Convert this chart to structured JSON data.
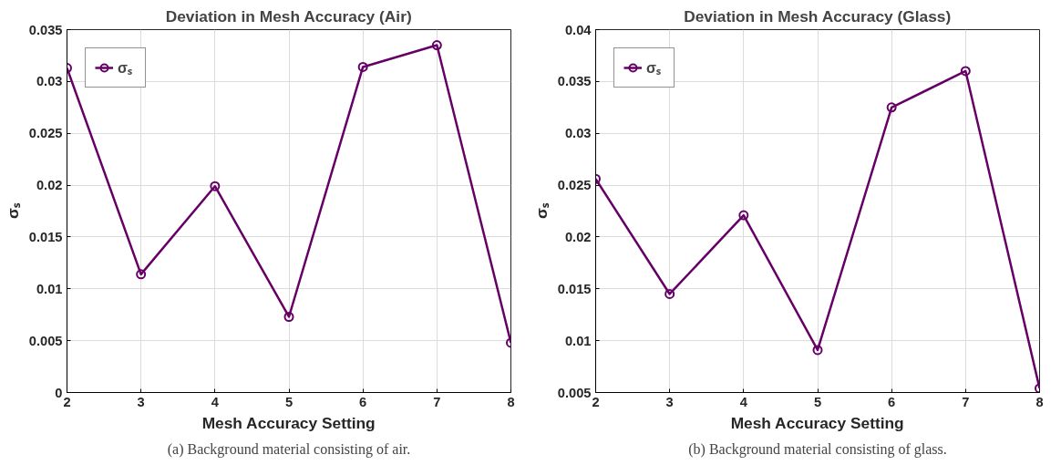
{
  "chart_data": [
    {
      "type": "line",
      "title": "Deviation in Mesh Accuracy (Air)",
      "xlabel": "Mesh Accuracy Setting",
      "ylabel": "σₛ",
      "x": [
        2,
        3,
        4,
        5,
        6,
        7,
        8
      ],
      "series": [
        {
          "name": "σₛ",
          "color": "#660066",
          "values": [
            0.0313,
            0.0114,
            0.0199,
            0.0073,
            0.0314,
            0.0335,
            0.0048
          ]
        }
      ],
      "xlim": [
        2,
        8
      ],
      "xticks": [
        2,
        3,
        4,
        5,
        6,
        7,
        8
      ],
      "ylim": [
        0,
        0.035
      ],
      "yticks": [
        0,
        0.005,
        0.01,
        0.015,
        0.02,
        0.025,
        0.03,
        0.035
      ],
      "grid": true,
      "legend": "top left",
      "marker": "circle",
      "line_style": "solid",
      "annotations": [
        "(a) Background material consisting of air."
      ]
    },
    {
      "type": "line",
      "title": "Deviation in Mesh Accuracy (Glass)",
      "xlabel": "Mesh Accuracy Setting",
      "ylabel": "σₛ",
      "x": [
        2,
        3,
        4,
        5,
        6,
        7,
        8
      ],
      "series": [
        {
          "name": "σₛ",
          "color": "#660066",
          "values": [
            0.0256,
            0.0145,
            0.0221,
            0.0091,
            0.0325,
            0.036,
            0.0054
          ]
        }
      ],
      "xlim": [
        2,
        8
      ],
      "xticks": [
        2,
        3,
        4,
        5,
        6,
        7,
        8
      ],
      "ylim": [
        0.005,
        0.04
      ],
      "yticks": [
        0.005,
        0.01,
        0.015,
        0.02,
        0.025,
        0.03,
        0.035,
        0.04
      ],
      "grid": true,
      "legend": "top left",
      "marker": "circle",
      "line_style": "solid",
      "annotations": [
        "(b) Background material consisting of glass."
      ]
    }
  ]
}
